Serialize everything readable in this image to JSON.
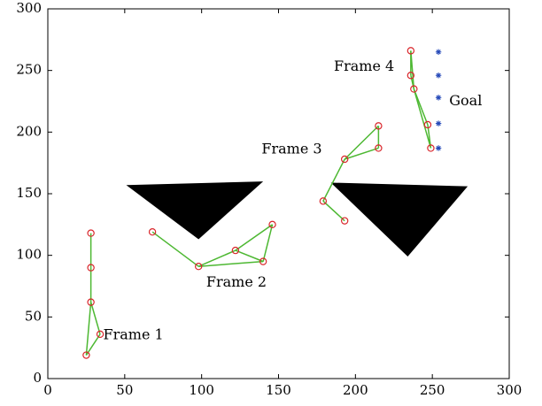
{
  "chart_data": {
    "type": "scatter",
    "title": "",
    "xlabel": "",
    "ylabel": "",
    "xlim": [
      0,
      300
    ],
    "ylim": [
      0,
      300
    ],
    "x_ticks": [
      0,
      50,
      100,
      150,
      200,
      250,
      300
    ],
    "y_ticks": [
      0,
      50,
      100,
      150,
      200,
      250,
      300
    ],
    "grid": false,
    "colors": {
      "link": "#4db832",
      "joint": "#d9262b",
      "goal": "#2448b8",
      "obstacle": "#000000",
      "axis": "#000000"
    },
    "obstacles": [
      {
        "name": "obstacle-1",
        "points": [
          [
            51,
            157
          ],
          [
            140,
            160
          ],
          [
            98,
            113
          ]
        ]
      },
      {
        "name": "obstacle-2",
        "points": [
          [
            184,
            159
          ],
          [
            273,
            156
          ],
          [
            234,
            99
          ]
        ]
      }
    ],
    "frames": [
      {
        "label": "Frame 1",
        "joints": [
          [
            25,
            19
          ],
          [
            34,
            36
          ],
          [
            28,
            62
          ],
          [
            28,
            90
          ],
          [
            28,
            118
          ]
        ],
        "links": [
          [
            0,
            1
          ],
          [
            1,
            2
          ],
          [
            0,
            2
          ],
          [
            2,
            3
          ],
          [
            3,
            4
          ]
        ]
      },
      {
        "label": "Frame 2",
        "joints": [
          [
            68,
            119
          ],
          [
            98,
            91
          ],
          [
            122,
            104
          ],
          [
            140,
            95
          ],
          [
            146,
            125
          ]
        ],
        "links": [
          [
            0,
            1
          ],
          [
            1,
            2
          ],
          [
            1,
            3
          ],
          [
            2,
            3
          ],
          [
            2,
            4
          ],
          [
            3,
            4
          ]
        ]
      },
      {
        "label": "Frame 3",
        "joints": [
          [
            193,
            128
          ],
          [
            179,
            144
          ],
          [
            193,
            178
          ],
          [
            215,
            205
          ],
          [
            215,
            187
          ]
        ],
        "links": [
          [
            0,
            1
          ],
          [
            1,
            2
          ],
          [
            2,
            3
          ],
          [
            2,
            4
          ],
          [
            3,
            4
          ]
        ]
      },
      {
        "label": "Frame 4",
        "joints": [
          [
            236,
            266
          ],
          [
            236,
            246
          ],
          [
            238,
            235
          ],
          [
            247,
            206
          ],
          [
            249,
            187
          ]
        ],
        "links": [
          [
            0,
            1
          ],
          [
            0,
            2
          ],
          [
            1,
            2
          ],
          [
            2,
            3
          ],
          [
            3,
            4
          ],
          [
            2,
            4
          ]
        ]
      }
    ],
    "goal": {
      "label": "Goal",
      "points": [
        [
          254,
          265
        ],
        [
          254,
          246
        ],
        [
          254,
          228
        ],
        [
          254,
          207
        ],
        [
          254,
          187
        ]
      ]
    },
    "annotations": [
      {
        "text": "Frame 1",
        "x": 36,
        "y": 35
      },
      {
        "text": "Frame 2",
        "x": 103,
        "y": 78
      },
      {
        "text": "Frame 3",
        "x": 139,
        "y": 186
      },
      {
        "text": "Frame 4",
        "x": 186,
        "y": 253
      },
      {
        "text": "Goal",
        "x": 261,
        "y": 225
      }
    ]
  }
}
